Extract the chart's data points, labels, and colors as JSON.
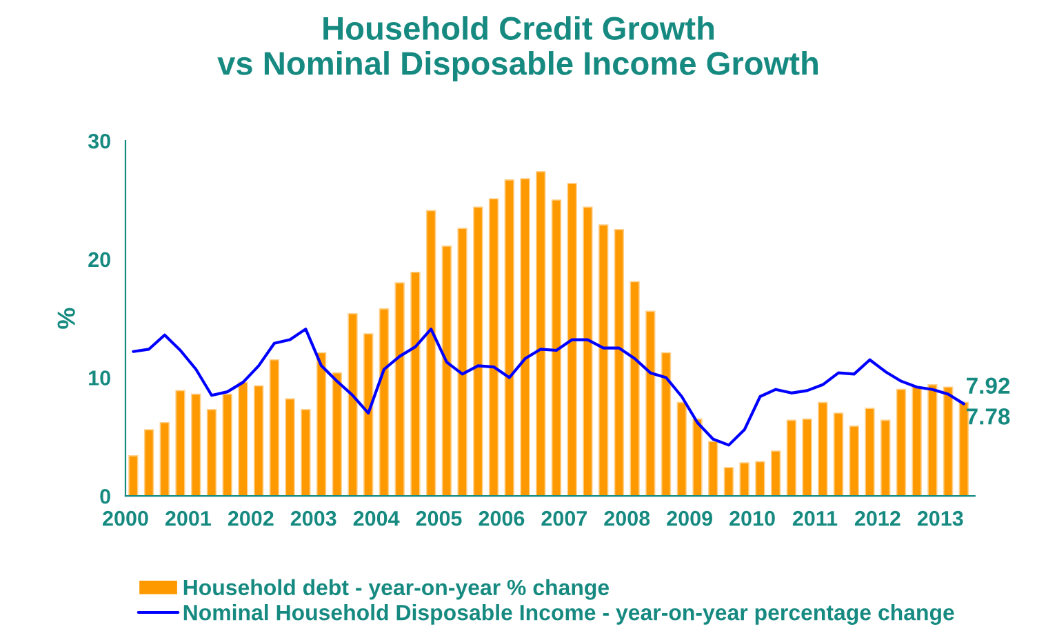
{
  "chart_data": {
    "type": "bar",
    "title": "Household Credit Growth\nvs Nominal Disposable Income Growth",
    "ylabel": "%",
    "x": [
      2000.125,
      2000.375,
      2000.625,
      2000.875,
      2001.125,
      2001.375,
      2001.625,
      2001.875,
      2002.125,
      2002.375,
      2002.625,
      2002.875,
      2003.125,
      2003.375,
      2003.625,
      2003.875,
      2004.125,
      2004.375,
      2004.625,
      2004.875,
      2005.125,
      2005.375,
      2005.625,
      2005.875,
      2006.125,
      2006.375,
      2006.625,
      2006.875,
      2007.125,
      2007.375,
      2007.625,
      2007.875,
      2008.125,
      2008.375,
      2008.625,
      2008.875,
      2009.125,
      2009.375,
      2009.625,
      2009.875,
      2010.125,
      2010.375,
      2010.625,
      2010.875,
      2011.125,
      2011.375,
      2011.625,
      2011.875,
      2012.125,
      2012.375,
      2012.625,
      2012.875,
      2013.125,
      2013.375
    ],
    "series": [
      {
        "name": "Household debt - year-on-year % change",
        "color": "#ff9900",
        "values": [
          3.4,
          5.6,
          6.2,
          8.9,
          8.6,
          7.3,
          8.6,
          9.6,
          9.3,
          11.5,
          8.2,
          7.3,
          12.1,
          10.4,
          15.4,
          13.7,
          15.8,
          18.0,
          18.9,
          24.1,
          21.1,
          22.6,
          24.4,
          25.1,
          26.7,
          26.8,
          27.4,
          25.0,
          26.4,
          24.4,
          22.9,
          22.5,
          18.1,
          15.6,
          12.1,
          7.9,
          6.5,
          4.6,
          2.4,
          2.8,
          2.9,
          3.8,
          6.4,
          6.5,
          7.9,
          7.0,
          5.9,
          7.4,
          6.4,
          9.0,
          9.2,
          9.4,
          9.2,
          7.92
        ],
        "value_labels": [
          null,
          null,
          null,
          null,
          null,
          null,
          null,
          null,
          null,
          null,
          null,
          null,
          null,
          null,
          null,
          null,
          null,
          null,
          null,
          null,
          null,
          null,
          null,
          null,
          null,
          null,
          null,
          null,
          null,
          null,
          null,
          null,
          null,
          null,
          null,
          null,
          null,
          null,
          null,
          null,
          null,
          null,
          null,
          null,
          null,
          null,
          null,
          null,
          null,
          null,
          null,
          null,
          null,
          "7.92"
        ]
      },
      {
        "name": "Nominal Household Disposable Income - year-on-year percentage change",
        "type": "line",
        "color": "#0000ff",
        "values": [
          12.2,
          12.4,
          13.6,
          12.3,
          10.7,
          8.5,
          8.8,
          9.6,
          11.0,
          12.9,
          13.2,
          14.1,
          11.0,
          9.7,
          8.5,
          7.0,
          10.7,
          11.8,
          12.6,
          14.1,
          11.3,
          10.3,
          11.0,
          10.9,
          10.0,
          11.6,
          12.4,
          12.3,
          13.2,
          13.2,
          12.5,
          12.5,
          11.6,
          10.4,
          10.0,
          8.4,
          6.2,
          4.8,
          4.3,
          5.6,
          8.4,
          9.0,
          8.7,
          8.9,
          9.4,
          10.4,
          10.3,
          11.5,
          10.5,
          9.7,
          9.2,
          9.0,
          8.6,
          7.78
        ],
        "value_labels": [
          null,
          null,
          null,
          null,
          null,
          null,
          null,
          null,
          null,
          null,
          null,
          null,
          null,
          null,
          null,
          null,
          null,
          null,
          null,
          null,
          null,
          null,
          null,
          null,
          null,
          null,
          null,
          null,
          null,
          null,
          null,
          null,
          null,
          null,
          null,
          null,
          null,
          null,
          null,
          null,
          null,
          null,
          null,
          null,
          null,
          null,
          null,
          null,
          null,
          null,
          null,
          null,
          null,
          "7.78"
        ]
      }
    ],
    "xlim": [
      2000,
      2013.55
    ],
    "xticks": [
      2000,
      2001,
      2002,
      2003,
      2004,
      2005,
      2006,
      2007,
      2008,
      2009,
      2010,
      2011,
      2012,
      2013
    ],
    "ylim": [
      0,
      30
    ],
    "yticks": [
      0,
      10,
      20,
      30
    ],
    "grid": false,
    "legend": "bottom"
  }
}
